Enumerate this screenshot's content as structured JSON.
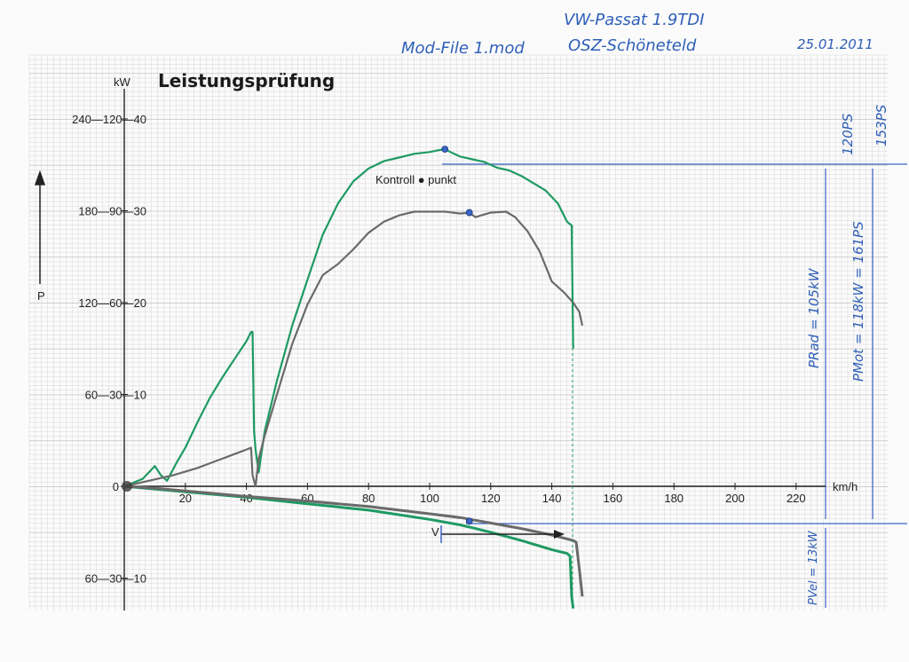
{
  "handwritten": {
    "vehicle": "VW-Passat 1.9TDI",
    "mod_file": "Mod-File 1.mod",
    "location": "OSZ-Schöneteld",
    "date": "25.01.2011",
    "ps_top": "120PS",
    "ps_mid": "153PS",
    "p_rad": "PRad = 105kW",
    "p_mot": "PMot = 118kW = 161PS",
    "p_vel": "PVel = 13kW"
  },
  "chart_data": {
    "type": "line",
    "title": "Leistungsprüfung",
    "xlabel": "km/h",
    "ylabel": "P",
    "y_unit_label": "kW",
    "xlim": [
      0,
      230
    ],
    "ylim": [
      -13,
      40
    ],
    "grid": true,
    "x_ticks": [
      "20",
      "40",
      "60",
      "80",
      "100",
      "120",
      "140",
      "160",
      "180",
      "200",
      "220"
    ],
    "y_ticks_left": [
      {
        "value": 40,
        "label": "240—120—40"
      },
      {
        "value": 30,
        "label": "180—90—30"
      },
      {
        "value": 20,
        "label": "120—60—20"
      },
      {
        "value": 10,
        "label": "60—30—10"
      },
      {
        "value": 0,
        "label": "0"
      },
      {
        "value": -10,
        "label": "60—30—10"
      }
    ],
    "annotation": "Kontroll ● punkt",
    "arrow_label": "V",
    "colors": {
      "green": "#1e9a62",
      "gray": "#6a6a6a",
      "blue": "#3a63c4",
      "grid": "#c9c9c9"
    },
    "series": [
      {
        "color": "green",
        "x": [
          0,
          3,
          6,
          8,
          10,
          12,
          14,
          17,
          20,
          24,
          28,
          32,
          36,
          40,
          41.5,
          42,
          42.5,
          43,
          44,
          46,
          50,
          55,
          60,
          65,
          70,
          75,
          80,
          85,
          90,
          95,
          100,
          103,
          105,
          108,
          110,
          114,
          118,
          122,
          126,
          130,
          134,
          138,
          142,
          145,
          146.5,
          147
        ],
        "y": [
          0,
          0.4,
          0.8,
          1.5,
          2.2,
          1.2,
          0.6,
          2.5,
          4.2,
          7,
          9.6,
          11.8,
          13.8,
          15.8,
          16.8,
          16.8,
          6,
          4,
          1.5,
          6,
          11.5,
          17.5,
          22.5,
          27.4,
          30.8,
          33.2,
          34.6,
          35.4,
          35.8,
          36.2,
          36.4,
          36.6,
          36.7,
          36.2,
          35.9,
          35.6,
          35.3,
          34.7,
          34.4,
          33.8,
          33,
          32.2,
          30.8,
          28.8,
          28.4,
          15
        ]
      },
      {
        "color": "gray",
        "x": [
          0,
          4,
          8,
          12,
          16,
          20,
          24,
          28,
          32,
          36,
          40,
          41.5,
          42,
          43,
          44,
          46,
          50,
          55,
          60,
          65,
          70,
          75,
          80,
          85,
          90,
          95,
          100,
          105,
          110,
          113,
          115,
          118,
          120,
          125,
          128,
          132,
          136,
          140,
          144,
          147,
          149,
          150
        ],
        "y": [
          0,
          0.3,
          0.6,
          0.9,
          1.2,
          1.6,
          2,
          2.5,
          3,
          3.5,
          4,
          4.2,
          1.2,
          0,
          3,
          5.5,
          10,
          15.5,
          19.8,
          23,
          24.2,
          25.8,
          27.6,
          28.8,
          29.5,
          29.9,
          29.9,
          29.9,
          29.7,
          29.8,
          29.3,
          29.6,
          29.8,
          29.9,
          29.3,
          27.8,
          25.6,
          22.3,
          21.1,
          20,
          19,
          17.5
        ]
      },
      {
        "color": "green",
        "x": [
          0,
          10,
          20,
          30,
          40,
          60,
          80,
          100,
          110,
          115,
          120,
          130,
          140,
          145,
          146,
          146.5,
          147
        ],
        "y": [
          0,
          -0.3,
          -0.6,
          -0.9,
          -1.2,
          -1.9,
          -2.6,
          -3.6,
          -4.2,
          -4.6,
          -5,
          -5.9,
          -6.9,
          -7.3,
          -7.6,
          -12,
          -13.3
        ]
      },
      {
        "color": "gray",
        "x": [
          0,
          10,
          20,
          30,
          40,
          60,
          80,
          100,
          110,
          115,
          120,
          130,
          140,
          147,
          148,
          149,
          150
        ],
        "y": [
          0,
          -0.2,
          -0.5,
          -0.8,
          -1.1,
          -1.6,
          -2.2,
          -3,
          -3.4,
          -3.7,
          -4,
          -4.6,
          -5.3,
          -5.9,
          -6.1,
          -9,
          -12
        ]
      }
    ],
    "markers": [
      {
        "x": 105,
        "y": 36.7,
        "color": "blue"
      },
      {
        "x": 113,
        "y": 29.8,
        "color": "blue"
      },
      {
        "x": 113,
        "y": -3.8,
        "color": "blue"
      }
    ]
  }
}
